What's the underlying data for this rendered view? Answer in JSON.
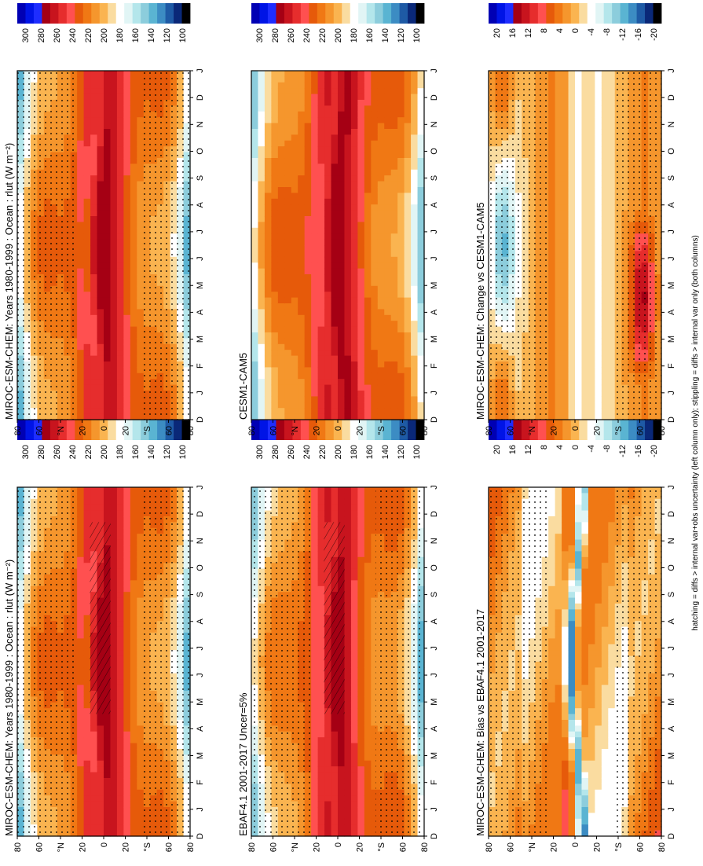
{
  "footnote": "hatching = diffs > internal var+obs uncertainty (left column only); stippling = diffs > internal var only (both columns)",
  "month_labels": [
    "D",
    "J",
    "F",
    "M",
    "A",
    "M",
    "J",
    "J",
    "A",
    "S",
    "O",
    "N",
    "D",
    "J"
  ],
  "lat_labels": [
    "80",
    "60",
    "°N",
    "20",
    "0",
    "20",
    "°S",
    "60",
    "80"
  ],
  "colorscales": {
    "abs": {
      "colors": [
        "#0000b4",
        "#0014e6",
        "#1e2dff",
        "#a50014",
        "#c8141e",
        "#e62d2d",
        "#ff5050",
        "#e65a0a",
        "#f07814",
        "#f5962d",
        "#fab450",
        "#fadca0",
        "#ffffff",
        "#e1f5f5",
        "#b4e6eb",
        "#8ccddc",
        "#5ab4d2",
        "#3c8cc3",
        "#1e5aa5",
        "#0a2878",
        "#000000"
      ],
      "labels": [
        "300",
        "280",
        "260",
        "240",
        "220",
        "200",
        "180",
        "160",
        "140",
        "120",
        "100"
      ]
    },
    "diff": {
      "colors": [
        "#0000b4",
        "#0014e6",
        "#1e2dff",
        "#a50014",
        "#c8141e",
        "#e62d2d",
        "#ff5050",
        "#e65a0a",
        "#f07814",
        "#f5962d",
        "#fab450",
        "#fadca0",
        "#ffffff",
        "#e1f5f5",
        "#b4e6eb",
        "#8ccddc",
        "#5ab4d2",
        "#3c8cc3",
        "#1e5aa5",
        "#0a2878",
        "#000000"
      ],
      "labels": [
        "20",
        "16",
        "12",
        "8",
        "4",
        "0",
        "-4",
        "-8",
        "-12",
        "-16",
        "-20"
      ]
    }
  },
  "chart_data": [
    {
      "type": "heatmap",
      "title": "MIROC-ESM-CHEM: Years 1980-1999 : Ocean : rlut (W m⁻²)",
      "scale": "abs",
      "field": "model",
      "hatching": true,
      "stippling": true
    },
    {
      "type": "heatmap",
      "title": "MIROC-ESM-CHEM: Years 1980-1999 : Ocean : rlut (W m⁻²)",
      "scale": "abs",
      "field": "model",
      "hatching": false,
      "stippling": true
    },
    {
      "type": "heatmap",
      "title": "EBAF4.1 2001-2017 Uncer=5%",
      "scale": "abs",
      "field": "obs",
      "hatching": true,
      "stippling": true
    },
    {
      "type": "heatmap",
      "title": "CESM1-CAM5",
      "scale": "abs",
      "field": "cesm",
      "hatching": false,
      "stippling": false
    },
    {
      "type": "heatmap",
      "title": "MIROC-ESM-CHEM: Bias vs EBAF4.1 2001-2017",
      "scale": "diff",
      "field": "bias",
      "hatching": false,
      "stippling": true
    },
    {
      "type": "heatmap",
      "title": "MIROC-ESM-CHEM: Change vs CESM1-CAM5",
      "scale": "diff",
      "field": "change",
      "hatching": false,
      "stippling": true
    }
  ]
}
